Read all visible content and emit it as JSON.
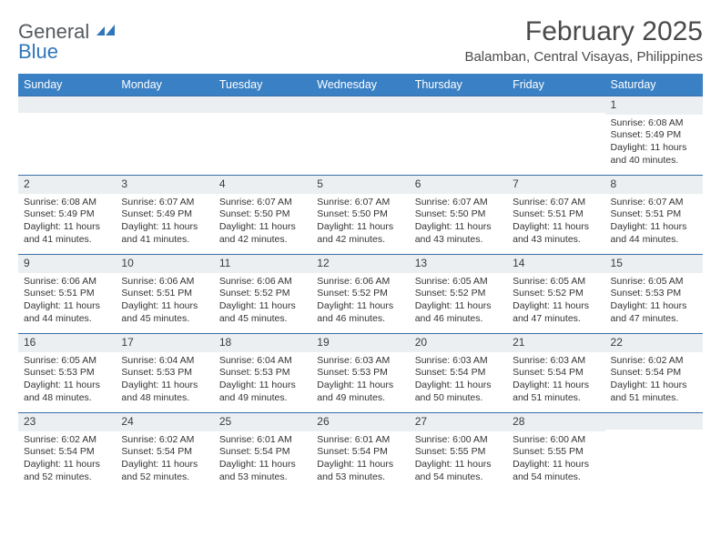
{
  "logo": {
    "word1": "General",
    "word2": "Blue"
  },
  "header": {
    "title": "February 2025",
    "subtitle": "Balamban, Central Visayas, Philippines"
  },
  "colors": {
    "header_bar": "#3a80c4",
    "week_border": "#3a6fa8",
    "daynum_bg": "#eceff1",
    "text": "#333333",
    "logo_gray": "#555a5f",
    "logo_blue": "#2f76bb"
  },
  "weekdays": [
    "Sunday",
    "Monday",
    "Tuesday",
    "Wednesday",
    "Thursday",
    "Friday",
    "Saturday"
  ],
  "weeks": [
    [
      {
        "n": "",
        "sr": "",
        "ss": "",
        "dl1": "",
        "dl2": ""
      },
      {
        "n": "",
        "sr": "",
        "ss": "",
        "dl1": "",
        "dl2": ""
      },
      {
        "n": "",
        "sr": "",
        "ss": "",
        "dl1": "",
        "dl2": ""
      },
      {
        "n": "",
        "sr": "",
        "ss": "",
        "dl1": "",
        "dl2": ""
      },
      {
        "n": "",
        "sr": "",
        "ss": "",
        "dl1": "",
        "dl2": ""
      },
      {
        "n": "",
        "sr": "",
        "ss": "",
        "dl1": "",
        "dl2": ""
      },
      {
        "n": "1",
        "sr": "Sunrise: 6:08 AM",
        "ss": "Sunset: 5:49 PM",
        "dl1": "Daylight: 11 hours",
        "dl2": "and 40 minutes."
      }
    ],
    [
      {
        "n": "2",
        "sr": "Sunrise: 6:08 AM",
        "ss": "Sunset: 5:49 PM",
        "dl1": "Daylight: 11 hours",
        "dl2": "and 41 minutes."
      },
      {
        "n": "3",
        "sr": "Sunrise: 6:07 AM",
        "ss": "Sunset: 5:49 PM",
        "dl1": "Daylight: 11 hours",
        "dl2": "and 41 minutes."
      },
      {
        "n": "4",
        "sr": "Sunrise: 6:07 AM",
        "ss": "Sunset: 5:50 PM",
        "dl1": "Daylight: 11 hours",
        "dl2": "and 42 minutes."
      },
      {
        "n": "5",
        "sr": "Sunrise: 6:07 AM",
        "ss": "Sunset: 5:50 PM",
        "dl1": "Daylight: 11 hours",
        "dl2": "and 42 minutes."
      },
      {
        "n": "6",
        "sr": "Sunrise: 6:07 AM",
        "ss": "Sunset: 5:50 PM",
        "dl1": "Daylight: 11 hours",
        "dl2": "and 43 minutes."
      },
      {
        "n": "7",
        "sr": "Sunrise: 6:07 AM",
        "ss": "Sunset: 5:51 PM",
        "dl1": "Daylight: 11 hours",
        "dl2": "and 43 minutes."
      },
      {
        "n": "8",
        "sr": "Sunrise: 6:07 AM",
        "ss": "Sunset: 5:51 PM",
        "dl1": "Daylight: 11 hours",
        "dl2": "and 44 minutes."
      }
    ],
    [
      {
        "n": "9",
        "sr": "Sunrise: 6:06 AM",
        "ss": "Sunset: 5:51 PM",
        "dl1": "Daylight: 11 hours",
        "dl2": "and 44 minutes."
      },
      {
        "n": "10",
        "sr": "Sunrise: 6:06 AM",
        "ss": "Sunset: 5:51 PM",
        "dl1": "Daylight: 11 hours",
        "dl2": "and 45 minutes."
      },
      {
        "n": "11",
        "sr": "Sunrise: 6:06 AM",
        "ss": "Sunset: 5:52 PM",
        "dl1": "Daylight: 11 hours",
        "dl2": "and 45 minutes."
      },
      {
        "n": "12",
        "sr": "Sunrise: 6:06 AM",
        "ss": "Sunset: 5:52 PM",
        "dl1": "Daylight: 11 hours",
        "dl2": "and 46 minutes."
      },
      {
        "n": "13",
        "sr": "Sunrise: 6:05 AM",
        "ss": "Sunset: 5:52 PM",
        "dl1": "Daylight: 11 hours",
        "dl2": "and 46 minutes."
      },
      {
        "n": "14",
        "sr": "Sunrise: 6:05 AM",
        "ss": "Sunset: 5:52 PM",
        "dl1": "Daylight: 11 hours",
        "dl2": "and 47 minutes."
      },
      {
        "n": "15",
        "sr": "Sunrise: 6:05 AM",
        "ss": "Sunset: 5:53 PM",
        "dl1": "Daylight: 11 hours",
        "dl2": "and 47 minutes."
      }
    ],
    [
      {
        "n": "16",
        "sr": "Sunrise: 6:05 AM",
        "ss": "Sunset: 5:53 PM",
        "dl1": "Daylight: 11 hours",
        "dl2": "and 48 minutes."
      },
      {
        "n": "17",
        "sr": "Sunrise: 6:04 AM",
        "ss": "Sunset: 5:53 PM",
        "dl1": "Daylight: 11 hours",
        "dl2": "and 48 minutes."
      },
      {
        "n": "18",
        "sr": "Sunrise: 6:04 AM",
        "ss": "Sunset: 5:53 PM",
        "dl1": "Daylight: 11 hours",
        "dl2": "and 49 minutes."
      },
      {
        "n": "19",
        "sr": "Sunrise: 6:03 AM",
        "ss": "Sunset: 5:53 PM",
        "dl1": "Daylight: 11 hours",
        "dl2": "and 49 minutes."
      },
      {
        "n": "20",
        "sr": "Sunrise: 6:03 AM",
        "ss": "Sunset: 5:54 PM",
        "dl1": "Daylight: 11 hours",
        "dl2": "and 50 minutes."
      },
      {
        "n": "21",
        "sr": "Sunrise: 6:03 AM",
        "ss": "Sunset: 5:54 PM",
        "dl1": "Daylight: 11 hours",
        "dl2": "and 51 minutes."
      },
      {
        "n": "22",
        "sr": "Sunrise: 6:02 AM",
        "ss": "Sunset: 5:54 PM",
        "dl1": "Daylight: 11 hours",
        "dl2": "and 51 minutes."
      }
    ],
    [
      {
        "n": "23",
        "sr": "Sunrise: 6:02 AM",
        "ss": "Sunset: 5:54 PM",
        "dl1": "Daylight: 11 hours",
        "dl2": "and 52 minutes."
      },
      {
        "n": "24",
        "sr": "Sunrise: 6:02 AM",
        "ss": "Sunset: 5:54 PM",
        "dl1": "Daylight: 11 hours",
        "dl2": "and 52 minutes."
      },
      {
        "n": "25",
        "sr": "Sunrise: 6:01 AM",
        "ss": "Sunset: 5:54 PM",
        "dl1": "Daylight: 11 hours",
        "dl2": "and 53 minutes."
      },
      {
        "n": "26",
        "sr": "Sunrise: 6:01 AM",
        "ss": "Sunset: 5:54 PM",
        "dl1": "Daylight: 11 hours",
        "dl2": "and 53 minutes."
      },
      {
        "n": "27",
        "sr": "Sunrise: 6:00 AM",
        "ss": "Sunset: 5:55 PM",
        "dl1": "Daylight: 11 hours",
        "dl2": "and 54 minutes."
      },
      {
        "n": "28",
        "sr": "Sunrise: 6:00 AM",
        "ss": "Sunset: 5:55 PM",
        "dl1": "Daylight: 11 hours",
        "dl2": "and 54 minutes."
      },
      {
        "n": "",
        "sr": "",
        "ss": "",
        "dl1": "",
        "dl2": ""
      }
    ]
  ]
}
